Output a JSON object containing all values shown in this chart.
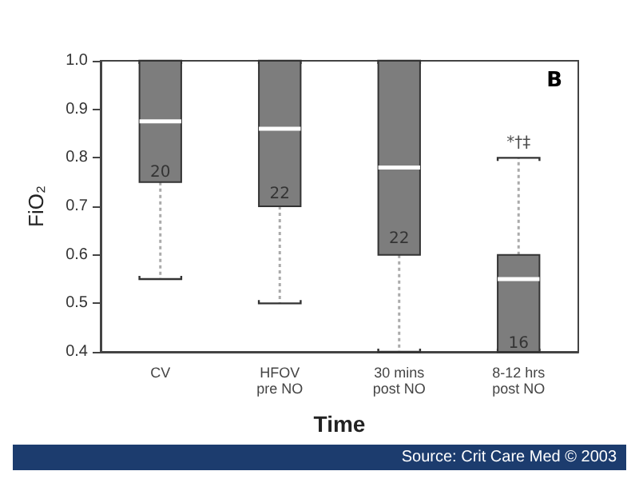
{
  "chart_data": {
    "type": "box",
    "xlabel": "Time",
    "ylabel": "FiO₂",
    "categories": [
      "CV",
      "HFOV\npre NO",
      "30 mins\npost NO",
      "8-12 hrs\npost NO"
    ],
    "boxes": [
      {
        "low": 0.55,
        "q1": 0.75,
        "median": 0.875,
        "q3": 1.0,
        "high": 1.0
      },
      {
        "low": 0.5,
        "q1": 0.7,
        "median": 0.86,
        "q3": 1.0,
        "high": 1.0
      },
      {
        "low": 0.4,
        "q1": 0.6,
        "median": 0.78,
        "q3": 1.0,
        "high": 1.0
      },
      {
        "low": 0.4,
        "q1": 0.4,
        "median": 0.55,
        "q3": 0.6,
        "high": 0.8
      }
    ],
    "color": "#7d7d7d",
    "ylim": [
      0.4,
      1.0
    ],
    "yticks": [
      0.4,
      0.5,
      0.6,
      0.7,
      0.8,
      0.9,
      {
        "value": 1,
        "label": "1.0"
      }
    ],
    "grid": false,
    "annotations": [
      "20",
      "22",
      "22",
      "16",
      "*†‡",
      "B",
      "Source: Crit Care Med © 2003"
    ]
  }
}
